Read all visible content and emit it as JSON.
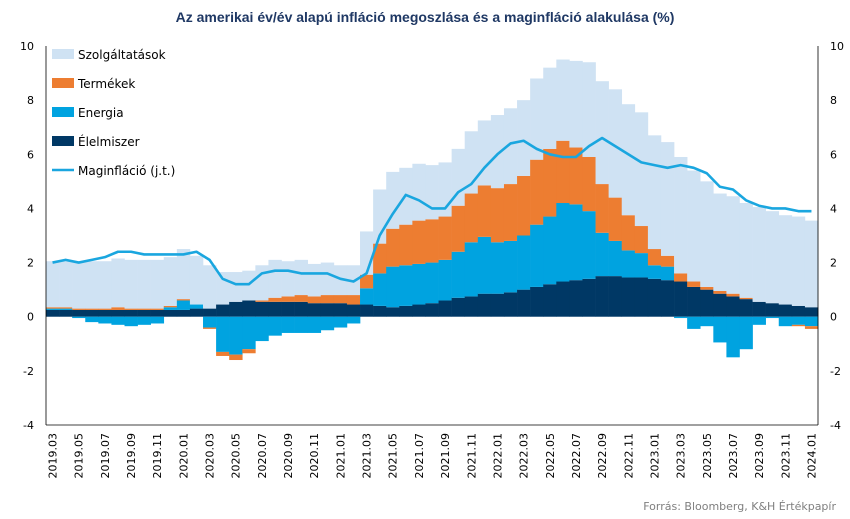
{
  "chart_data": {
    "type": "bar",
    "title": "Az amerikai év/év alapú infláció megoszlása és a maginfláció alakulása (%)",
    "source": "Forrás: Bloomberg, K&H Értékpapír",
    "months": [
      "2019.03",
      "2019.04",
      "2019.05",
      "2019.06",
      "2019.07",
      "2019.08",
      "2019.09",
      "2019.10",
      "2019.11",
      "2019.12",
      "2020.01",
      "2020.02",
      "2020.03",
      "2020.04",
      "2020.05",
      "2020.06",
      "2020.07",
      "2020.08",
      "2020.09",
      "2020.10",
      "2020.11",
      "2020.12",
      "2021.01",
      "2021.02",
      "2021.03",
      "2021.04",
      "2021.05",
      "2021.06",
      "2021.07",
      "2021.08",
      "2021.09",
      "2021.10",
      "2021.11",
      "2021.12",
      "2022.01",
      "2022.02",
      "2022.03",
      "2022.04",
      "2022.05",
      "2022.06",
      "2022.07",
      "2022.08",
      "2022.09",
      "2022.10",
      "2022.11",
      "2022.12",
      "2023.01",
      "2023.02",
      "2023.03",
      "2023.04",
      "2023.05",
      "2023.06",
      "2023.07",
      "2023.08",
      "2023.09",
      "2023.10",
      "2023.11",
      "2023.12",
      "2024.01"
    ],
    "x_tick_labels": [
      "2019.03",
      "2019.05",
      "2019.07",
      "2019.09",
      "2019.11",
      "2020.01",
      "2020.03",
      "2020.05",
      "2020.07",
      "2020.09",
      "2020.11",
      "2021.01",
      "2021.03",
      "2021.05",
      "2021.07",
      "2021.09",
      "2021.11",
      "2022.01",
      "2022.03",
      "2022.05",
      "2022.07",
      "2022.09",
      "2022.11",
      "2023.01",
      "2023.03",
      "2023.05",
      "2023.07",
      "2023.09",
      "2023.11",
      "2024.01"
    ],
    "y_left": {
      "min": -4,
      "max": 10,
      "ticks": [
        -4,
        -2,
        0,
        2,
        4,
        6,
        8,
        10
      ]
    },
    "y_right": {
      "min": -4,
      "max": 10,
      "ticks": [
        -4,
        -2,
        0,
        2,
        4,
        6,
        8,
        10
      ]
    },
    "grid": false,
    "legend_position": "top-left",
    "series": [
      {
        "name": "Szolgáltatások",
        "kind": "bar",
        "color": "#cfe2f3",
        "values": [
          1.7,
          1.7,
          1.7,
          1.75,
          1.75,
          1.8,
          1.8,
          1.8,
          1.8,
          1.8,
          1.85,
          1.8,
          1.6,
          1.2,
          1.1,
          1.1,
          1.3,
          1.4,
          1.3,
          1.3,
          1.2,
          1.2,
          1.1,
          1.1,
          1.6,
          2.0,
          2.1,
          2.1,
          2.1,
          2.0,
          2.0,
          2.1,
          2.3,
          2.4,
          2.7,
          2.8,
          2.8,
          3.0,
          3.0,
          3.0,
          3.2,
          3.5,
          3.8,
          4.0,
          4.1,
          4.2,
          4.2,
          4.2,
          4.3,
          4.1,
          3.9,
          3.6,
          3.6,
          3.5,
          3.5,
          3.4,
          3.3,
          3.3,
          3.2
        ]
      },
      {
        "name": "Termékek",
        "kind": "bar",
        "color": "#ed7d31",
        "values": [
          0.05,
          0.05,
          0.05,
          0.05,
          0.05,
          0.1,
          0.05,
          0.05,
          0.05,
          0.05,
          0.05,
          0.0,
          -0.05,
          -0.15,
          -0.2,
          -0.15,
          0.05,
          0.15,
          0.2,
          0.25,
          0.25,
          0.3,
          0.3,
          0.35,
          0.5,
          1.1,
          1.4,
          1.5,
          1.6,
          1.6,
          1.6,
          1.7,
          1.8,
          1.9,
          2.0,
          2.1,
          2.2,
          2.4,
          2.5,
          2.3,
          2.1,
          2.0,
          1.8,
          1.6,
          1.3,
          1.0,
          0.6,
          0.4,
          0.3,
          0.2,
          0.1,
          0.1,
          0.1,
          0.05,
          0.0,
          0.0,
          0.0,
          -0.05,
          -0.1
        ]
      },
      {
        "name": "Energia",
        "kind": "bar",
        "color": "#00a3e0",
        "values": [
          0.05,
          0.05,
          -0.05,
          -0.2,
          -0.25,
          -0.3,
          -0.35,
          -0.3,
          -0.25,
          0.1,
          0.35,
          0.15,
          -0.4,
          -1.3,
          -1.4,
          -1.2,
          -0.9,
          -0.7,
          -0.6,
          -0.6,
          -0.6,
          -0.5,
          -0.4,
          -0.25,
          0.6,
          1.2,
          1.5,
          1.5,
          1.5,
          1.5,
          1.5,
          1.7,
          2.0,
          2.1,
          1.9,
          1.9,
          2.0,
          2.3,
          2.5,
          2.9,
          2.8,
          2.5,
          1.6,
          1.3,
          1.0,
          0.9,
          0.5,
          0.5,
          -0.05,
          -0.45,
          -0.35,
          -0.95,
          -1.5,
          -1.2,
          -0.3,
          -0.05,
          -0.35,
          -0.3,
          -0.35
        ]
      },
      {
        "name": "Élelmiszer",
        "kind": "bar",
        "color": "#003865",
        "values": [
          0.25,
          0.25,
          0.25,
          0.25,
          0.25,
          0.25,
          0.25,
          0.25,
          0.25,
          0.25,
          0.25,
          0.3,
          0.3,
          0.45,
          0.55,
          0.6,
          0.55,
          0.55,
          0.55,
          0.55,
          0.5,
          0.5,
          0.5,
          0.45,
          0.45,
          0.4,
          0.35,
          0.4,
          0.45,
          0.5,
          0.6,
          0.7,
          0.75,
          0.85,
          0.85,
          0.9,
          1.0,
          1.1,
          1.2,
          1.3,
          1.35,
          1.4,
          1.5,
          1.5,
          1.45,
          1.45,
          1.4,
          1.35,
          1.3,
          1.1,
          1.0,
          0.85,
          0.75,
          0.65,
          0.55,
          0.5,
          0.45,
          0.4,
          0.35
        ]
      },
      {
        "name": "Maginfláció (j.t.)",
        "kind": "line",
        "axis": "right",
        "color": "#1aa6df",
        "values": [
          2.0,
          2.1,
          2.0,
          2.1,
          2.2,
          2.4,
          2.4,
          2.3,
          2.3,
          2.3,
          2.3,
          2.4,
          2.1,
          1.4,
          1.2,
          1.2,
          1.6,
          1.7,
          1.7,
          1.6,
          1.6,
          1.6,
          1.4,
          1.3,
          1.6,
          3.0,
          3.8,
          4.5,
          4.3,
          4.0,
          4.0,
          4.6,
          4.9,
          5.5,
          6.0,
          6.4,
          6.5,
          6.2,
          6.0,
          5.9,
          5.9,
          6.3,
          6.6,
          6.3,
          6.0,
          5.7,
          5.6,
          5.5,
          5.6,
          5.5,
          5.3,
          4.8,
          4.7,
          4.3,
          4.1,
          4.0,
          4.0,
          3.9,
          3.9
        ]
      }
    ]
  }
}
